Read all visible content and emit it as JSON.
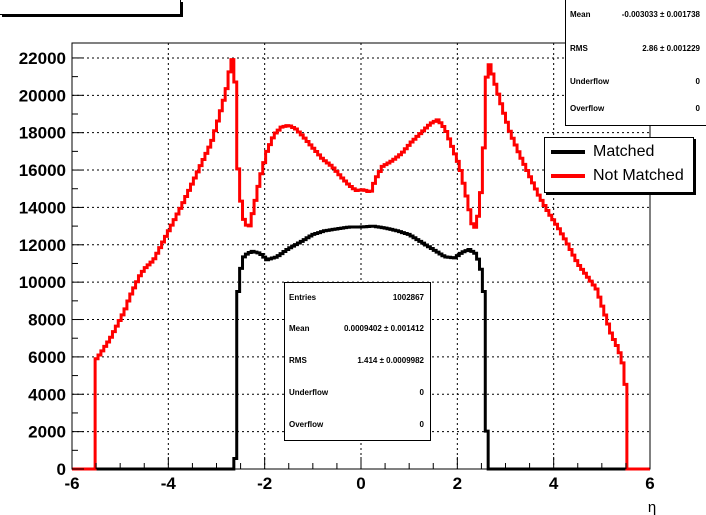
{
  "chart_data": {
    "type": "line",
    "title": "",
    "xlabel": "η",
    "ylabel": "",
    "xlim": [
      -6,
      6
    ],
    "ylim": [
      0,
      22800
    ],
    "x_ticks": [
      "-6",
      "-4",
      "-2",
      "0",
      "2",
      "4",
      "6"
    ],
    "y_ticks": [
      "0",
      "2000",
      "4000",
      "6000",
      "8000",
      "10000",
      "12000",
      "14000",
      "16000",
      "18000",
      "20000",
      "22000"
    ],
    "grid": true,
    "legend_position": "right",
    "series": [
      {
        "name": "Matched",
        "color": "#000000",
        "points": [
          [
            -6,
            0
          ],
          [
            -2.65,
            0
          ],
          [
            -2.6,
            700
          ],
          [
            -2.58,
            6000
          ],
          [
            -2.55,
            9500
          ],
          [
            -2.5,
            10600
          ],
          [
            -2.45,
            11300
          ],
          [
            -2.35,
            11550
          ],
          [
            -2.25,
            11650
          ],
          [
            -2.1,
            11550
          ],
          [
            -1.95,
            11200
          ],
          [
            -1.75,
            11350
          ],
          [
            -1.5,
            11800
          ],
          [
            -1.25,
            12150
          ],
          [
            -1.0,
            12550
          ],
          [
            -0.75,
            12750
          ],
          [
            -0.5,
            12850
          ],
          [
            -0.25,
            12950
          ],
          [
            0.0,
            12950
          ],
          [
            0.25,
            13000
          ],
          [
            0.5,
            12900
          ],
          [
            0.75,
            12750
          ],
          [
            1.0,
            12550
          ],
          [
            1.25,
            12150
          ],
          [
            1.5,
            11750
          ],
          [
            1.75,
            11350
          ],
          [
            1.95,
            11300
          ],
          [
            2.1,
            11600
          ],
          [
            2.25,
            11750
          ],
          [
            2.4,
            11500
          ],
          [
            2.5,
            10600
          ],
          [
            2.55,
            9500
          ],
          [
            2.58,
            6000
          ],
          [
            2.62,
            700
          ],
          [
            2.65,
            0
          ],
          [
            6,
            0
          ]
        ]
      },
      {
        "name": "Not Matched",
        "color": "#ff0000",
        "points": [
          [
            -6,
            0
          ],
          [
            -5.55,
            0
          ],
          [
            -5.52,
            5800
          ],
          [
            -5.4,
            6200
          ],
          [
            -5.2,
            7000
          ],
          [
            -5.0,
            8000
          ],
          [
            -4.9,
            8500
          ],
          [
            -4.8,
            9200
          ],
          [
            -4.6,
            10300
          ],
          [
            -4.5,
            10700
          ],
          [
            -4.3,
            11200
          ],
          [
            -4.1,
            12200
          ],
          [
            -3.9,
            13200
          ],
          [
            -3.7,
            14200
          ],
          [
            -3.5,
            15300
          ],
          [
            -3.3,
            16400
          ],
          [
            -3.1,
            17500
          ],
          [
            -2.95,
            18800
          ],
          [
            -2.8,
            20200
          ],
          [
            -2.75,
            21000
          ],
          [
            -2.68,
            21900
          ],
          [
            -2.62,
            21950
          ],
          [
            -2.58,
            17000
          ],
          [
            -2.5,
            14500
          ],
          [
            -2.42,
            13200
          ],
          [
            -2.32,
            12900
          ],
          [
            -2.22,
            14000
          ],
          [
            -2.1,
            15500
          ],
          [
            -1.95,
            17000
          ],
          [
            -1.8,
            17900
          ],
          [
            -1.65,
            18300
          ],
          [
            -1.5,
            18400
          ],
          [
            -1.35,
            18200
          ],
          [
            -1.2,
            17800
          ],
          [
            -1.0,
            17200
          ],
          [
            -0.8,
            16600
          ],
          [
            -0.6,
            16200
          ],
          [
            -0.4,
            15600
          ],
          [
            -0.25,
            15200
          ],
          [
            -0.1,
            14900
          ],
          [
            0.05,
            14950
          ],
          [
            0.2,
            14800
          ],
          [
            0.3,
            15500
          ],
          [
            0.45,
            16200
          ],
          [
            0.65,
            16500
          ],
          [
            0.85,
            16900
          ],
          [
            1.05,
            17500
          ],
          [
            1.25,
            18000
          ],
          [
            1.45,
            18500
          ],
          [
            1.6,
            18700
          ],
          [
            1.75,
            18200
          ],
          [
            1.9,
            17200
          ],
          [
            2.05,
            16200
          ],
          [
            2.2,
            14500
          ],
          [
            2.32,
            13000
          ],
          [
            2.4,
            12900
          ],
          [
            2.5,
            15000
          ],
          [
            2.58,
            18500
          ],
          [
            2.62,
            21800
          ],
          [
            2.68,
            21600
          ],
          [
            2.8,
            20500
          ],
          [
            2.95,
            19200
          ],
          [
            3.1,
            18000
          ],
          [
            3.3,
            16800
          ],
          [
            3.5,
            15700
          ],
          [
            3.7,
            14600
          ],
          [
            3.9,
            13700
          ],
          [
            4.1,
            12900
          ],
          [
            4.3,
            12000
          ],
          [
            4.5,
            11000
          ],
          [
            4.7,
            10300
          ],
          [
            4.9,
            9600
          ],
          [
            5.0,
            8800
          ],
          [
            5.1,
            8000
          ],
          [
            5.2,
            7200
          ],
          [
            5.35,
            6400
          ],
          [
            5.45,
            5500
          ],
          [
            5.52,
            3800
          ],
          [
            5.55,
            0
          ],
          [
            6,
            0
          ]
        ]
      }
    ]
  },
  "stats_top": {
    "rows": [
      {
        "label": "Mean",
        "value": "-0.003033 ± 0.001738"
      },
      {
        "label": "RMS",
        "value": "2.86 ± 0.001229"
      },
      {
        "label": "Underflow",
        "value": "0"
      },
      {
        "label": "Overflow",
        "value": "0"
      }
    ]
  },
  "stats_center": {
    "rows": [
      {
        "label": "Entries",
        "value": "1002867"
      },
      {
        "label": "Mean",
        "value": "0.0009402 ± 0.001412"
      },
      {
        "label": "RMS",
        "value": "1.414 ± 0.0009982"
      },
      {
        "label": "Underflow",
        "value": "0"
      },
      {
        "label": "Overflow",
        "value": "0"
      }
    ]
  },
  "legend": {
    "matched": "Matched",
    "not_matched": "Not Matched"
  }
}
